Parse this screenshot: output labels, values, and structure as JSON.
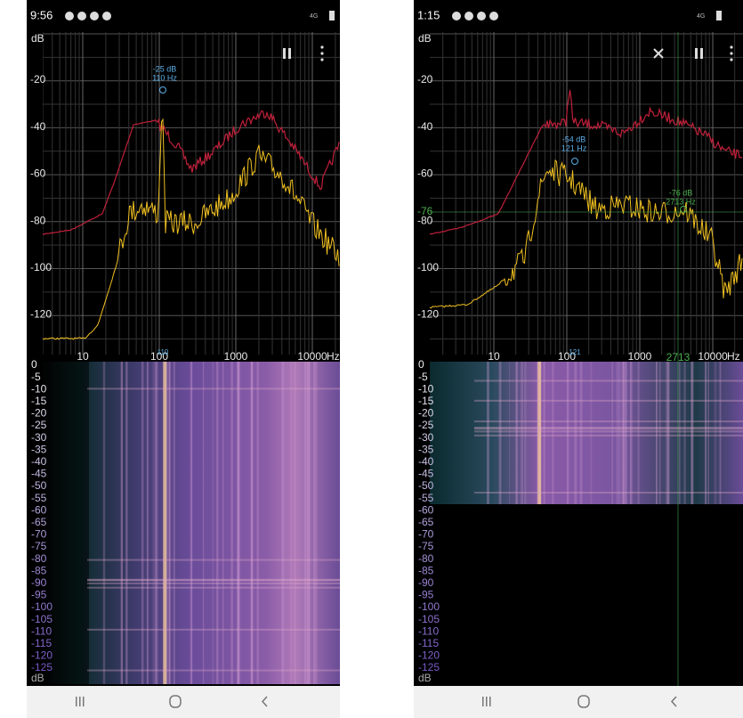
{
  "screens": [
    {
      "time": "9:56",
      "network": "4G",
      "y_unit": "dB",
      "y_labels": [
        "-20",
        "-40",
        "-60",
        "-80",
        "-100",
        "-120"
      ],
      "x_labels": [
        "10",
        "100",
        "1000",
        "10000"
      ],
      "x_unit": "Hz",
      "markers": [
        {
          "db": "-25 dB",
          "hz": "110 Hz",
          "axis_label": "110"
        }
      ],
      "spectrogram_labels": [
        "0",
        "-5",
        "-10",
        "-15",
        "-20",
        "-25",
        "-30",
        "-35",
        "-40",
        "-45",
        "-50",
        "-55",
        "-60",
        "-65",
        "-70",
        "-75",
        "-80",
        "-85",
        "-90",
        "-95",
        "-100",
        "-105",
        "-110",
        "-115",
        "-120",
        "-125"
      ],
      "spectrogram_unit": "dB"
    },
    {
      "time": "1:15",
      "network": "4G",
      "y_unit": "dB",
      "y_labels": [
        "-20",
        "-40",
        "-60",
        "-80",
        "-100",
        "-120"
      ],
      "x_labels": [
        "10",
        "100",
        "1000",
        "10000"
      ],
      "x_unit": "Hz",
      "markers": [
        {
          "db": "-54 dB",
          "hz": "121 Hz",
          "axis_label": "121"
        },
        {
          "db": "-76 dB",
          "hz": "2713 Hz",
          "axis_label": "2713",
          "level_label": "-76"
        }
      ],
      "spectrogram_labels": [
        "0",
        "-5",
        "-10",
        "-15",
        "-20",
        "-25",
        "-30",
        "-35",
        "-40",
        "-45",
        "-50",
        "-55",
        "-60",
        "-65",
        "-70",
        "-75",
        "-80",
        "-85",
        "-90",
        "-95",
        "-100",
        "-105",
        "-110",
        "-115",
        "-120",
        "-125"
      ],
      "spectrogram_unit": "dB"
    }
  ]
}
